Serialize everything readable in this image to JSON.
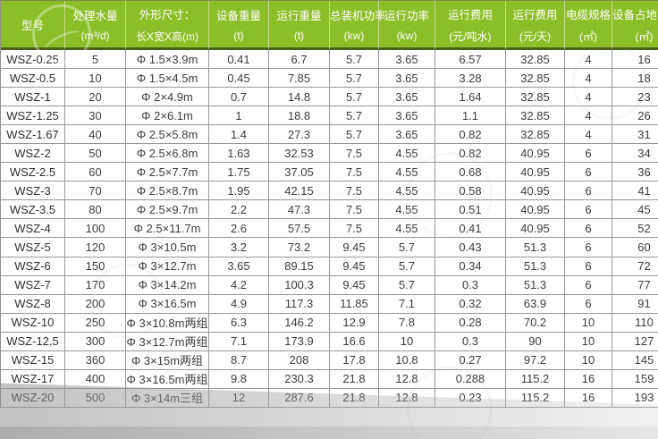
{
  "page": {
    "header_green": "#8cbf27",
    "grid_gray": "#979797"
  },
  "table": {
    "headers": [
      {
        "line1": "型号",
        "line2": ""
      },
      {
        "line1": "处理水量",
        "line2": "(m³/d)"
      },
      {
        "line1": "外形尺寸：",
        "line2": "长X宽X高(m)"
      },
      {
        "line1": "设备重量",
        "line2": "(t)"
      },
      {
        "line1": "运行重量",
        "line2": "(t)"
      },
      {
        "line1": "总装机功率",
        "line2": "(kw)"
      },
      {
        "line1": "运行功率",
        "line2": "(kw)"
      },
      {
        "line1": "运行费用",
        "line2": "(元/吨水)"
      },
      {
        "line1": "运行费用",
        "line2": "(元/天)"
      },
      {
        "line1": "电缆规格",
        "line2": "(㎡)"
      },
      {
        "line1": "设备占地面积",
        "line2": "(㎡)"
      }
    ]
  },
  "chart_data": {
    "type": "table",
    "columns": [
      "型号",
      "处理水量 (m³/d)",
      "外形尺寸：长X宽X高(m)",
      "设备重量 (t)",
      "运行重量 (t)",
      "总装机功率 (kw)",
      "运行功率 (kw)",
      "运行费用 (元/吨水)",
      "运行费用 (元/天)",
      "电缆规格 (㎡)",
      "设备占地面积 (㎡)"
    ],
    "rows": [
      [
        "WSZ-0.25",
        "5",
        "Φ 1.5×3.9m",
        "0.41",
        "6.7",
        "5.7",
        "3.65",
        "6.57",
        "32.85",
        "4",
        "16"
      ],
      [
        "WSZ-0.5",
        "10",
        "Φ 1.5×4.5m",
        "0.45",
        "7.85",
        "5.7",
        "3.65",
        "3.28",
        "32.85",
        "4",
        "18"
      ],
      [
        "WSZ-1",
        "20",
        "Φ 2×4.9m",
        "0.7",
        "14.8",
        "5.7",
        "3.65",
        "1.64",
        "32.85",
        "4",
        "23"
      ],
      [
        "WSZ-1.25",
        "30",
        "Φ 2×6.1m",
        "1",
        "18.8",
        "5.7",
        "3.65",
        "1.1",
        "32.85",
        "4",
        "26"
      ],
      [
        "WSZ-1.67",
        "40",
        "Φ 2.5×5.8m",
        "1.4",
        "27.3",
        "5.7",
        "3.65",
        "0.82",
        "32.85",
        "4",
        "31"
      ],
      [
        "WSZ-2",
        "50",
        "Φ 2.5×6.8m",
        "1.63",
        "32.53",
        "7.5",
        "4.55",
        "0.82",
        "40.95",
        "6",
        "34"
      ],
      [
        "WSZ-2.5",
        "60",
        "Φ 2.5×7.7m",
        "1.75",
        "37.05",
        "7.5",
        "4.55",
        "0.68",
        "40.95",
        "6",
        "36"
      ],
      [
        "WSZ-3",
        "70",
        "Φ 2.5×8.7m",
        "1.95",
        "42.15",
        "7.5",
        "4.55",
        "0.58",
        "40.95",
        "6",
        "41"
      ],
      [
        "WSZ-3.5",
        "80",
        "Φ 2.5×9.7m",
        "2.2",
        "47.3",
        "7.5",
        "4.55",
        "0.51",
        "40.95",
        "6",
        "45"
      ],
      [
        "WSZ-4",
        "100",
        "Φ 2.5×11.7m",
        "2.6",
        "57.5",
        "7.5",
        "4.55",
        "0.41",
        "40.95",
        "6",
        "52"
      ],
      [
        "WSZ-5",
        "120",
        "Φ 3×10.5m",
        "3.2",
        "73.2",
        "9.45",
        "5.7",
        "0.43",
        "51.3",
        "6",
        "60"
      ],
      [
        "WSZ-6",
        "150",
        "Φ 3×12.7m",
        "3.65",
        "89.15",
        "9.45",
        "5.7",
        "0.34",
        "51.3",
        "6",
        "72"
      ],
      [
        "WSZ-7",
        "170",
        "Φ 3×14.2m",
        "4.2",
        "100.3",
        "9.45",
        "5.7",
        "0.3",
        "51.3",
        "6",
        "77"
      ],
      [
        "WSZ-8",
        "200",
        "Φ 3×16.5m",
        "4.9",
        "117.3",
        "11.85",
        "7.1",
        "0.32",
        "63.9",
        "6",
        "91"
      ],
      [
        "WSZ-10",
        "250",
        "Φ 3×10.8m两组",
        "6.3",
        "146.2",
        "12.9",
        "7.8",
        "0.28",
        "70.2",
        "10",
        "110"
      ],
      [
        "WSZ-12.5",
        "300",
        "Φ 3×12.7m两组",
        "7.1",
        "173.9",
        "16.6",
        "10",
        "0.3",
        "90",
        "10",
        "127"
      ],
      [
        "WSZ-15",
        "360",
        "Φ 3×15m两组",
        "8.7",
        "208",
        "17.8",
        "10.8",
        "0.27",
        "97.2",
        "10",
        "145"
      ],
      [
        "WSZ-17",
        "400",
        "Φ 3×16.5m两组",
        "9.8",
        "230.3",
        "21.8",
        "12.8",
        "0.288",
        "115.2",
        "16",
        "159"
      ],
      [
        "WSZ-20",
        "500",
        "Φ 3×14m三组",
        "12",
        "287.6",
        "21.8",
        "12.8",
        "0.23",
        "115.2",
        "16",
        "193"
      ]
    ]
  }
}
